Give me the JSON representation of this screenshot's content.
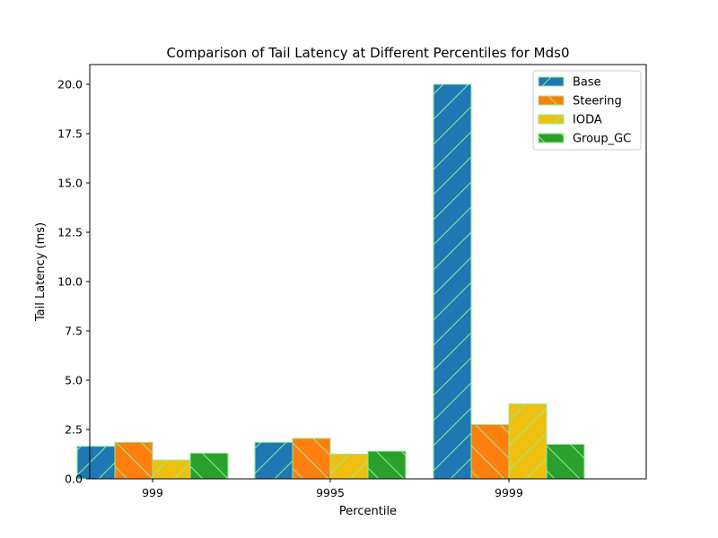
{
  "chart_data": {
    "type": "bar",
    "title": "Comparison of Tail Latency at Different Percentiles for Mds0",
    "xlabel": "Percentile",
    "ylabel": "Tail Latency (ms)",
    "categories": [
      "999",
      "9995",
      "9999"
    ],
    "ylim": [
      0,
      21
    ],
    "yticks": [
      "0.0",
      "2.5",
      "5.0",
      "7.5",
      "10.0",
      "12.5",
      "15.0",
      "17.5",
      "20.0"
    ],
    "grid": false,
    "legend_position": "top-right",
    "series": [
      {
        "name": "Base",
        "color": "#1f77b4",
        "hatch": "forward-diagonal",
        "values": [
          1.65,
          1.85,
          20.0
        ]
      },
      {
        "name": "Steering",
        "color": "#ff7f0e",
        "hatch": "back-diagonal",
        "values": [
          1.85,
          2.05,
          2.75
        ]
      },
      {
        "name": "IODA",
        "color": "#f0c010",
        "hatch": "forward-diagonal",
        "values": [
          0.95,
          1.25,
          3.8
        ]
      },
      {
        "name": "Group_GC",
        "color": "#2ca02c",
        "hatch": "back-diagonal",
        "values": [
          1.3,
          1.4,
          1.75
        ]
      }
    ],
    "edge_color": "#90ee90"
  }
}
